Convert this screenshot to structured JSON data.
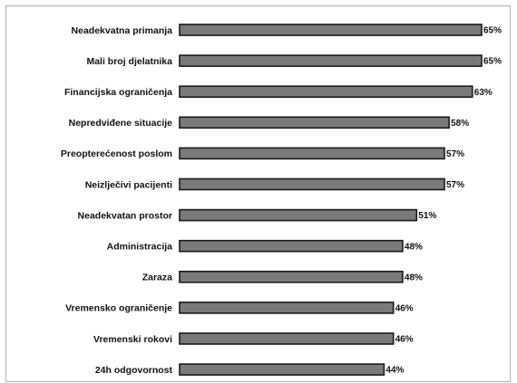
{
  "chart_data": {
    "type": "bar",
    "orientation": "horizontal",
    "title": "",
    "xlabel": "",
    "ylabel": "",
    "xlim": [
      0,
      65
    ],
    "grid": false,
    "legend": "none",
    "bar_color": "#7a7a7a",
    "bar_edge_color": "#1a1a1a",
    "value_suffix": "%",
    "categories": [
      "Neadekvatna primanja",
      "Mali broj djelatnika",
      "Financijska ograničenja",
      "Nepredviđene situacije",
      "Preopterećenost poslom",
      "Neizlječivi pacijenti",
      "Neadekvatan prostor",
      "Administracija",
      "Zaraza",
      "Vremensko ograničenje",
      "Vremenski rokovi",
      "24h odgovornost"
    ],
    "values": [
      65,
      65,
      63,
      58,
      57,
      57,
      51,
      48,
      48,
      46,
      46,
      44
    ],
    "value_labels": [
      "65%",
      "65%",
      "63%",
      "58%",
      "57%",
      "57%",
      "51%",
      "48%",
      "48%",
      "46%",
      "46%",
      "44%"
    ]
  }
}
